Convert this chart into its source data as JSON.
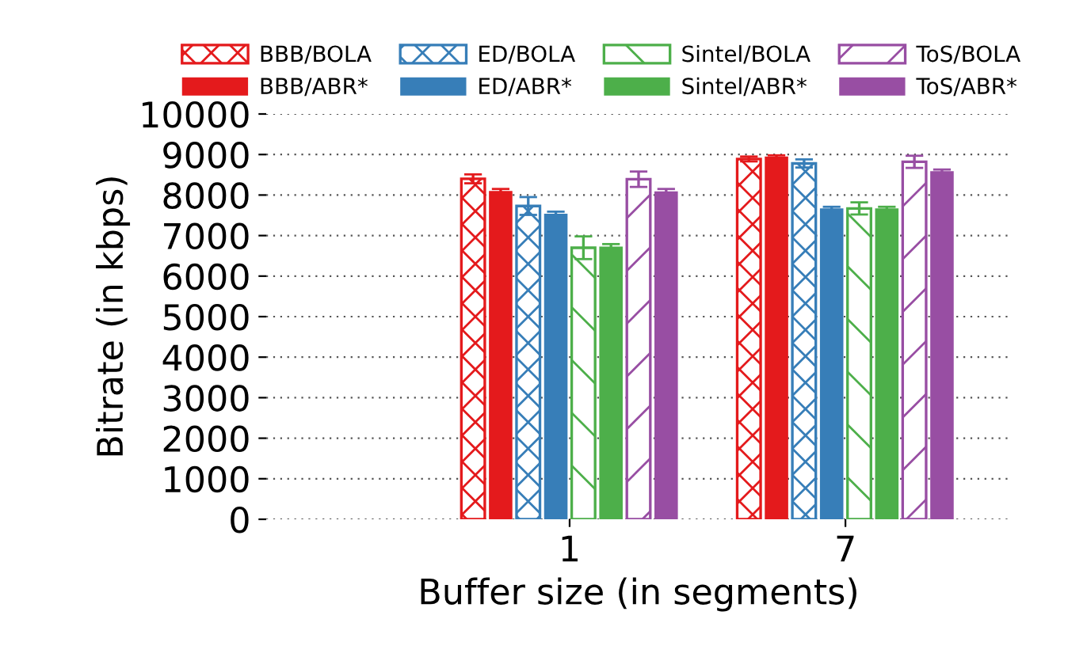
{
  "chart_data": {
    "type": "bar",
    "xlabel": "Buffer size (in segments)",
    "ylabel": "Bitrate (in kbps)",
    "categories": [
      "1",
      "7"
    ],
    "ylim": [
      0,
      10000
    ],
    "yticks": [
      0,
      1000,
      2000,
      3000,
      4000,
      5000,
      6000,
      7000,
      8000,
      9000,
      10000
    ],
    "grid": "y",
    "legend": "top",
    "series": [
      {
        "name": "BBB/BOLA",
        "color": "#e41a1c",
        "values": [
          8400,
          8890
        ],
        "errors": [
          110,
          60
        ]
      },
      {
        "name": "BBB/ABR*",
        "color": "#e41a1c",
        "values": [
          8100,
          8950
        ],
        "errors": [
          50,
          30
        ]
      },
      {
        "name": "ED/BOLA",
        "color": "#377eb8",
        "values": [
          7730,
          8780
        ],
        "errors": [
          220,
          100
        ]
      },
      {
        "name": "ED/ABR*",
        "color": "#377eb8",
        "values": [
          7540,
          7670
        ],
        "errors": [
          50,
          40
        ]
      },
      {
        "name": "Sintel/BOLA",
        "color": "#4daf4a",
        "values": [
          6700,
          7670
        ],
        "errors": [
          280,
          150
        ]
      },
      {
        "name": "Sintel/ABR*",
        "color": "#4daf4a",
        "values": [
          6730,
          7670
        ],
        "errors": [
          60,
          40
        ]
      },
      {
        "name": "ToS/BOLA",
        "color": "#984ea3",
        "values": [
          8390,
          8820
        ],
        "errors": [
          190,
          150
        ]
      },
      {
        "name": "ToS/ABR*",
        "color": "#984ea3",
        "values": [
          8090,
          8590
        ],
        "errors": [
          60,
          40
        ]
      }
    ]
  }
}
